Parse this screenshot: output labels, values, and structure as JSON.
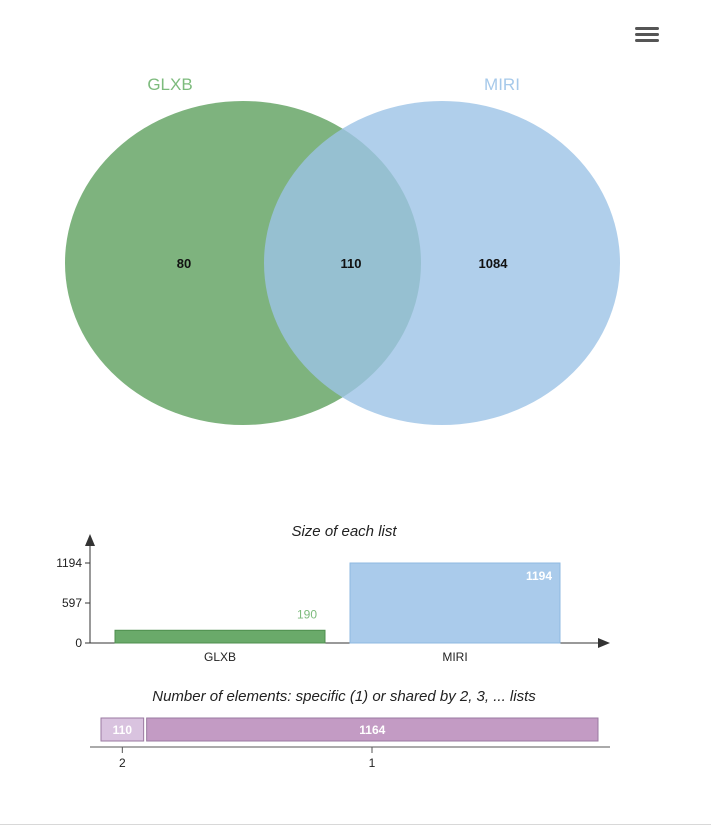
{
  "menu": {
    "icon": "hamburger-menu-icon"
  },
  "venn": {
    "sets": [
      {
        "name": "GLXB",
        "color": "#5a9e5a",
        "label_color": "#7dbb7d"
      },
      {
        "name": "MIRI",
        "color": "#9cc3e6",
        "label_color": "#a6c9ea"
      }
    ],
    "regions": {
      "GLXB_only": "80",
      "both": "110",
      "MIRI_only": "1084"
    }
  },
  "chart_data": [
    {
      "type": "bar",
      "title": "Size of each list",
      "categories": [
        "GLXB",
        "MIRI"
      ],
      "values": [
        190,
        1194
      ],
      "value_labels": [
        "190",
        "1194"
      ],
      "yticks": [
        "0",
        "597",
        "1194"
      ],
      "ylim": [
        0,
        1194
      ],
      "colors": [
        "#6aaa6a",
        "#aacbeb"
      ],
      "label_colors": [
        "#7dbb7d",
        "#ffffff"
      ]
    },
    {
      "type": "bar",
      "orientation": "horizontal-stacked",
      "title": "Number of elements: specific (1) or shared by 2, 3, ... lists",
      "categories": [
        "2",
        "1"
      ],
      "values": [
        110,
        1164
      ],
      "value_labels": [
        "110",
        "1164"
      ],
      "colors": [
        "#d9c3df",
        "#c39bc4"
      ]
    }
  ]
}
